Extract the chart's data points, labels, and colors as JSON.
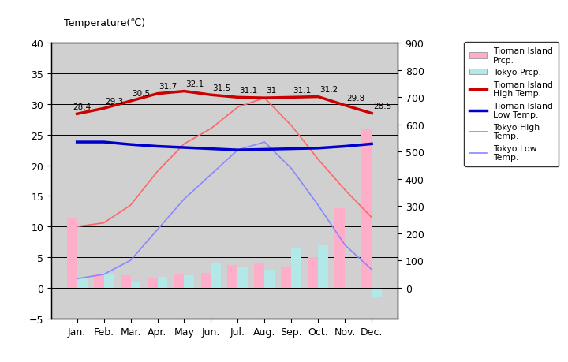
{
  "months": [
    "Jan.",
    "Feb.",
    "Mar.",
    "Apr.",
    "May",
    "Jun.",
    "Jul.",
    "Aug.",
    "Sep.",
    "Oct.",
    "Nov.",
    "Dec."
  ],
  "tioman_high": [
    28.4,
    29.3,
    30.5,
    31.7,
    32.1,
    31.5,
    31.1,
    31.0,
    31.1,
    31.2,
    29.8,
    28.5
  ],
  "tioman_low": [
    23.8,
    23.8,
    23.4,
    23.1,
    22.9,
    22.7,
    22.5,
    22.6,
    22.7,
    22.8,
    23.1,
    23.5
  ],
  "tokyo_high": [
    10.0,
    10.6,
    13.5,
    19.0,
    23.5,
    26.0,
    29.5,
    31.0,
    26.5,
    21.0,
    16.0,
    11.5
  ],
  "tokyo_low": [
    1.5,
    2.2,
    4.5,
    9.5,
    14.5,
    18.5,
    22.5,
    23.8,
    19.5,
    13.5,
    7.0,
    3.0
  ],
  "tioman_prcp_left": [
    11.5,
    2.2,
    2.0,
    1.5,
    2.2,
    2.5,
    3.7,
    4.0,
    3.5,
    5.0,
    13.0,
    26.0
  ],
  "tokyo_prcp_left": [
    1.5,
    2.2,
    1.0,
    1.8,
    2.0,
    4.0,
    3.5,
    3.0,
    6.5,
    7.0,
    0.0,
    -1.5
  ],
  "tioman_high_labels": [
    "28.4",
    "29.3",
    "30.5",
    "31.7",
    "32.1",
    "31.5",
    "31.1",
    "31",
    "31.1",
    "31.2",
    "29.8",
    "28.5"
  ],
  "bg_color": "#d0d0d0",
  "tioman_prcp_color": "#ffaec9",
  "tokyo_prcp_color": "#b3e8e8",
  "tioman_high_color": "#cc0000",
  "tioman_low_color": "#0000cc",
  "tokyo_high_color": "#ff6666",
  "tokyo_low_color": "#8888ff",
  "ylabel_left": "Temperature(℃)",
  "ylim_left": [
    -5,
    40
  ],
  "ylim_right": [
    -112.5,
    900
  ],
  "left_ticks": [
    -5,
    0,
    5,
    10,
    15,
    20,
    25,
    30,
    35,
    40
  ],
  "right_ticks": [
    0,
    100,
    200,
    300,
    400,
    500,
    600,
    700,
    800,
    900
  ]
}
